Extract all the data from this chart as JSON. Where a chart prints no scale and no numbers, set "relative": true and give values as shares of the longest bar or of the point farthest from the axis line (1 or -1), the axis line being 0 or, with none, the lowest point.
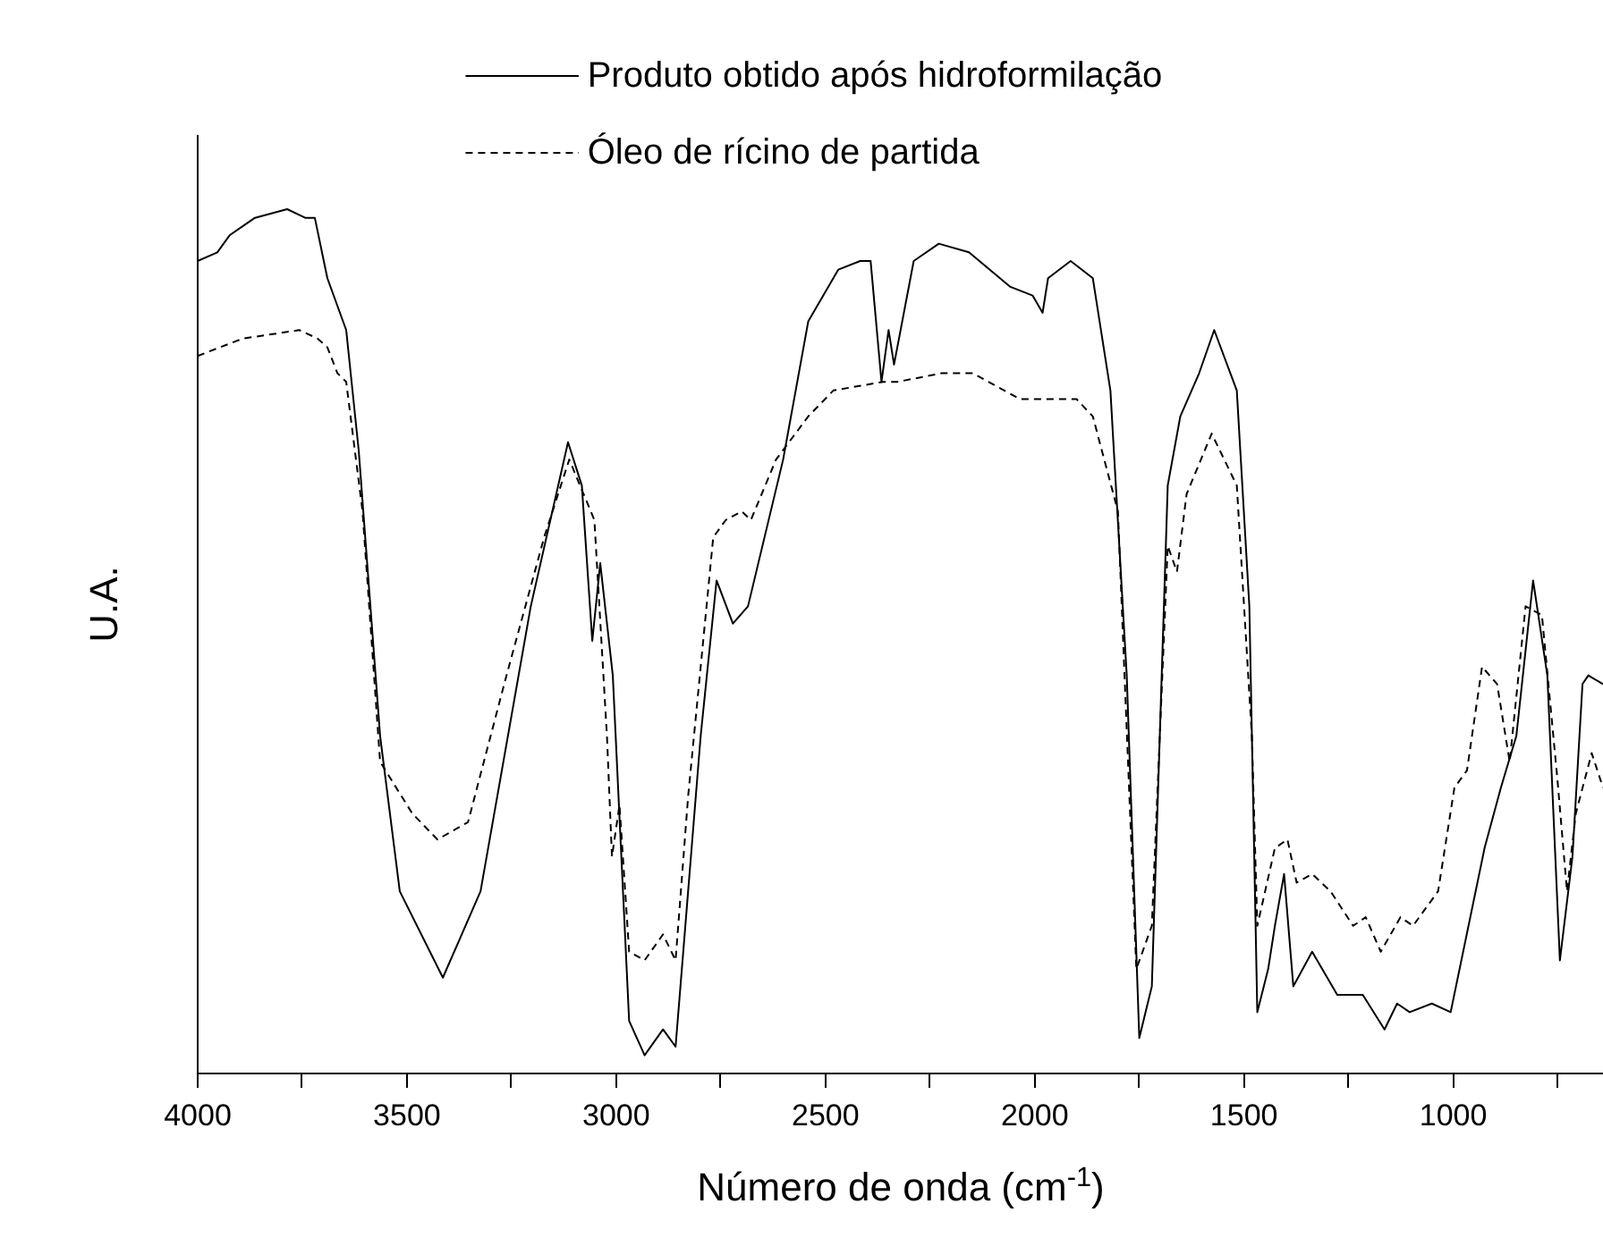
{
  "chart_data": {
    "type": "line",
    "relative": true,
    "xlabel": "Número de onda (cm$^{-1}$)",
    "ylabel": "U.A.",
    "xlim": [
      4000,
      640
    ],
    "xticks": [
      4000,
      {
        "value": 3750,
        "label": null
      },
      3500,
      {
        "value": 3250,
        "label": null
      },
      3000,
      {
        "value": 2750,
        "label": null
      },
      2500,
      {
        "value": 2250,
        "label": null
      },
      2000,
      {
        "value": 1750,
        "label": null
      },
      1500,
      {
        "value": 1250,
        "label": null
      },
      1000,
      {
        "value": 750,
        "label": null
      }
    ],
    "grid": false,
    "legend": "top",
    "marker": "none",
    "series": [
      {
        "name": "Produto obtido após hidroformilação",
        "color": "#000000",
        "line_style": "solid",
        "x": [
          3998,
          3951,
          3921,
          3861,
          3784,
          3741,
          3718,
          3688,
          3643,
          3613,
          3562,
          3515,
          3412,
          3322,
          3202,
          3113,
          3080,
          3055,
          3036,
          3006,
          2967,
          2930,
          2886,
          2856,
          2796,
          2758,
          2719,
          2683,
          2599,
          2539,
          2467,
          2415,
          2390,
          2364,
          2347,
          2334,
          2287,
          2227,
          2155,
          2056,
          2003,
          1979,
          1966,
          1912,
          1859,
          1817,
          1778,
          1748,
          1718,
          1680,
          1650,
          1605,
          1569,
          1515,
          1485,
          1466,
          1440,
          1424,
          1402,
          1380,
          1335,
          1275,
          1214,
          1162,
          1132,
          1102,
          1049,
          1004,
          923,
          884,
          847,
          807,
          773,
          743,
          713,
          689,
          675,
          640
        ],
        "values": [
          0.94,
          0.95,
          0.97,
          0.99,
          1.0,
          0.99,
          0.99,
          0.92,
          0.86,
          0.72,
          0.39,
          0.21,
          0.11,
          0.21,
          0.54,
          0.73,
          0.68,
          0.5,
          0.59,
          0.46,
          0.06,
          0.02,
          0.05,
          0.03,
          0.39,
          0.57,
          0.52,
          0.54,
          0.71,
          0.87,
          0.93,
          0.94,
          0.94,
          0.8,
          0.86,
          0.82,
          0.94,
          0.96,
          0.95,
          0.91,
          0.9,
          0.88,
          0.92,
          0.94,
          0.92,
          0.79,
          0.46,
          0.04,
          0.1,
          0.68,
          0.76,
          0.81,
          0.86,
          0.79,
          0.54,
          0.07,
          0.12,
          0.17,
          0.23,
          0.1,
          0.14,
          0.09,
          0.09,
          0.05,
          0.08,
          0.07,
          0.08,
          0.07,
          0.26,
          0.33,
          0.39,
          0.57,
          0.46,
          0.13,
          0.25,
          0.45,
          0.46,
          0.45
        ]
      },
      {
        "name": "Óleo de rícino de partida",
        "color": "#000000",
        "line_style": "dashed",
        "x": [
          3998,
          3891,
          3755,
          3711,
          3688,
          3664,
          3643,
          3604,
          3562,
          3485,
          3425,
          3352,
          3260,
          3170,
          3110,
          3050,
          3020,
          3008,
          2990,
          2967,
          2930,
          2886,
          2856,
          2826,
          2766,
          2736,
          2698,
          2676,
          2616,
          2539,
          2479,
          2360,
          2326,
          2220,
          2146,
          2033,
          1979,
          1898,
          1859,
          1799,
          1755,
          1718,
          1680,
          1658,
          1635,
          1575,
          1515,
          1479,
          1466,
          1424,
          1394,
          1372,
          1335,
          1291,
          1237,
          1207,
          1171,
          1124,
          1094,
          1034,
          995,
          965,
          929,
          893,
          863,
          825,
          786,
          749,
          726,
          705,
          667,
          640
        ],
        "values": [
          0.83,
          0.85,
          0.86,
          0.85,
          0.84,
          0.81,
          0.8,
          0.65,
          0.36,
          0.3,
          0.27,
          0.29,
          0.46,
          0.62,
          0.71,
          0.64,
          0.39,
          0.25,
          0.31,
          0.14,
          0.13,
          0.16,
          0.13,
          0.32,
          0.62,
          0.64,
          0.65,
          0.64,
          0.71,
          0.76,
          0.79,
          0.8,
          0.8,
          0.81,
          0.81,
          0.78,
          0.78,
          0.78,
          0.76,
          0.65,
          0.12,
          0.17,
          0.61,
          0.58,
          0.67,
          0.74,
          0.68,
          0.39,
          0.17,
          0.26,
          0.27,
          0.22,
          0.23,
          0.21,
          0.17,
          0.18,
          0.14,
          0.18,
          0.17,
          0.21,
          0.33,
          0.35,
          0.47,
          0.45,
          0.36,
          0.54,
          0.53,
          0.34,
          0.21,
          0.3,
          0.37,
          0.33
        ]
      }
    ]
  }
}
